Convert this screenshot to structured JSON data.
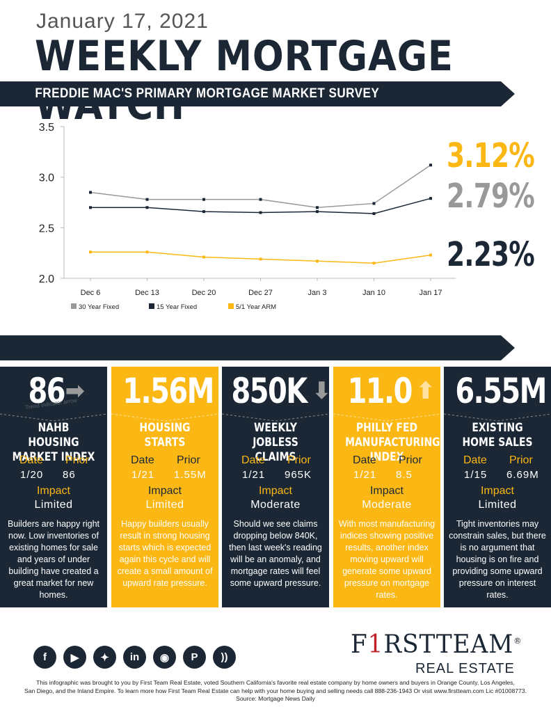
{
  "header": {
    "date": "January 17, 2021",
    "title": "WEEKLY MORTGAGE WATCH",
    "subtitle": "FREDDIE MAC'S PRIMARY MORTGAGE MARKET SURVEY"
  },
  "colors": {
    "navy": "#1b2735",
    "gold": "#fbb713",
    "gray": "#999999"
  },
  "chart_data": {
    "type": "line",
    "categories": [
      "Dec 6",
      "Dec 13",
      "Dec 20",
      "Dec 27",
      "Jan 3",
      "Jan 10",
      "Jan 17"
    ],
    "ylim": [
      2.0,
      3.5
    ],
    "yticks": [
      "2.0",
      "2.5",
      "3.0",
      "3.5"
    ],
    "grid": false,
    "legend_position": "bottom",
    "series": [
      {
        "name": "30 Year Fixed",
        "color": "#999999",
        "values": [
          2.85,
          2.78,
          2.78,
          2.78,
          2.7,
          2.74,
          3.12
        ]
      },
      {
        "name": "15 Year Fixed",
        "color": "#1b2735",
        "values": [
          2.7,
          2.7,
          2.66,
          2.65,
          2.66,
          2.64,
          2.79
        ]
      },
      {
        "name": "5/1 Year ARM",
        "color": "#fbb713",
        "values": [
          2.26,
          2.26,
          2.21,
          2.19,
          2.17,
          2.15,
          2.23
        ]
      }
    ],
    "callouts": [
      {
        "text": "3.12%",
        "color": "#fbb713"
      },
      {
        "text": "2.79%",
        "color": "#999999"
      },
      {
        "text": "2.23%",
        "color": "#1b2735"
      }
    ]
  },
  "cards": [
    {
      "value": "86",
      "arrow": "right",
      "name": "NAHB HOUSING MARKET INDEX",
      "date_label": "Date",
      "prior_label": "Prior",
      "date": "1/20",
      "prior": "86",
      "impact_label": "Impact",
      "impact": "Limited",
      "desc": "Builders are happy right now. Low inventories of existing homes for sale and years of under building have created a great market for new homes.",
      "theme": "dark"
    },
    {
      "value": "1.56M",
      "arrow": "up",
      "name": "HOUSING STARTS",
      "date_label": "Date",
      "prior_label": "Prior",
      "date": "1/21",
      "prior": "1.55M",
      "impact_label": "Impact",
      "impact": "Limited",
      "desc": "Happy builders usually result in strong housing starts which is expected again this cycle and will create a small amount of upward rate pressure.",
      "theme": "gold"
    },
    {
      "value": "850K",
      "arrow": "down",
      "name": "WEEKLY JOBLESS CLAIMS",
      "date_label": "Date",
      "prior_label": "Prior",
      "date": "1/21",
      "prior": "965K",
      "impact_label": "Impact",
      "impact": "Moderate",
      "desc": "Should we see claims dropping below 840K, then last week's reading will be an anomaly, and mortgage rates will feel some upward pressure.",
      "theme": "dark"
    },
    {
      "value": "11.0",
      "arrow": "up",
      "name": "PHILLY FED MANUFACTURING INDEX",
      "date_label": "Date",
      "prior_label": "Prior",
      "date": "1/21",
      "prior": "8.5",
      "impact_label": "Impact",
      "impact": "Moderate",
      "desc": "With most manufacturing indices showing positive results, another index moving upward will generate some upward pressure on mortgage rates.",
      "theme": "gold"
    },
    {
      "value": "6.55M",
      "arrow": "down",
      "name": "EXISTING HOME SALES",
      "date_label": "Date",
      "prior_label": "Prior",
      "date": "1/15",
      "prior": "6.69M",
      "impact_label": "Impact",
      "impact": "Limited",
      "desc": "Tight inventories may constrain sales, but there is no argument that housing is on fire and providing some upward pressure on interest rates.",
      "theme": "dark"
    }
  ],
  "watermark": "Trend indicator arrow",
  "social_icons": [
    "facebook-icon",
    "youtube-icon",
    "twitter-icon",
    "linkedin-icon",
    "instagram-icon",
    "pinterest-icon",
    "rss-icon"
  ],
  "logo": {
    "name_a": "F",
    "name_one": "1",
    "name_b": "RST",
    "name_c": "TEAM",
    "reg": "®",
    "sub": "REAL ESTATE"
  },
  "footer": {
    "line1": "This infographic was brought to you by First Team Real Estate, voted Southern California's favorite real estate company by home owners and buyers in Orange County, Los Angeles,",
    "line2": "San Diego, and the Inland Empire. To learn more how First Team Real Estate can help with your home buying and selling needs call 888-236-1943 Or visit www.firstteam.com Lic #01008773.",
    "line3": "Source: Mortgage News Daily"
  }
}
